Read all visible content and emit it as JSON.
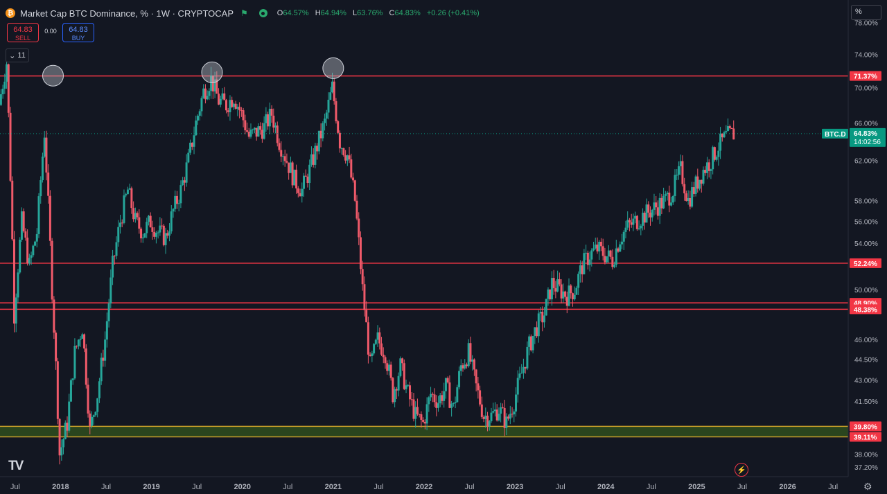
{
  "legend": {
    "coin_icon": "bitcoin-icon",
    "title": "Market Cap BTC Dominance, % · 1W · CRYPTOCAP",
    "ohlc_labels": {
      "o": "O",
      "h": "H",
      "l": "L",
      "c": "C"
    },
    "open": "64.57%",
    "high": "64.94%",
    "low": "63.76%",
    "close": "64.83%",
    "change": "+0.26 (+0.41%)"
  },
  "trade": {
    "sell_price": "64.83",
    "sell_label": "SELL",
    "spread": "0.00",
    "buy_price": "64.83",
    "buy_label": "BUY"
  },
  "collapse_count": "11",
  "scale_mode_label": "%",
  "colors": {
    "background": "#131722",
    "up": "#26a69a",
    "down": "#f05a6a",
    "level_line": "#f23645",
    "support_band": "#2e4a1e",
    "support_edge": "#c8a02a",
    "price_tag": "#089981"
  },
  "chart_data": {
    "type": "candlestick",
    "title": "Market Cap BTC Dominance, % · 1W · CRYPTOCAP",
    "yscale": "log",
    "ylim": [
      36.6,
      81.0
    ],
    "xlim": [
      "2017-05",
      "2026-09"
    ],
    "y_ticks": [
      "78.00%",
      "74.00%",
      "70.00%",
      "66.00%",
      "62.00%",
      "58.00%",
      "56.00%",
      "54.00%",
      "50.00%",
      "46.00%",
      "44.50%",
      "43.00%",
      "41.50%",
      "38.00%",
      "37.20%"
    ],
    "x_ticks": [
      {
        "label": "Jul",
        "t": "2017-07"
      },
      {
        "label": "2018",
        "t": "2018-01"
      },
      {
        "label": "Jul",
        "t": "2018-07"
      },
      {
        "label": "2019",
        "t": "2019-01"
      },
      {
        "label": "Jul",
        "t": "2019-07"
      },
      {
        "label": "2020",
        "t": "2020-01"
      },
      {
        "label": "Jul",
        "t": "2020-07"
      },
      {
        "label": "2021",
        "t": "2021-01"
      },
      {
        "label": "Jul",
        "t": "2021-07"
      },
      {
        "label": "2022",
        "t": "2022-01"
      },
      {
        "label": "Jul",
        "t": "2022-07"
      },
      {
        "label": "2023",
        "t": "2023-01"
      },
      {
        "label": "Jul",
        "t": "2023-07"
      },
      {
        "label": "2024",
        "t": "2024-01"
      },
      {
        "label": "Jul",
        "t": "2024-07"
      },
      {
        "label": "2025",
        "t": "2025-01"
      },
      {
        "label": "Jul",
        "t": "2025-07"
      },
      {
        "label": "2026",
        "t": "2026-01"
      },
      {
        "label": "Jul",
        "t": "2026-07"
      }
    ],
    "key_levels": [
      {
        "value": 71.37,
        "label": "71.37%"
      },
      {
        "value": 52.24,
        "label": "52.24%"
      },
      {
        "value": 48.9,
        "label": "48.90%"
      },
      {
        "value": 48.38,
        "label": "48.38%"
      }
    ],
    "support_zone": {
      "high": 39.8,
      "low": 39.11,
      "high_label": "39.80%",
      "low_label": "39.11%"
    },
    "current": {
      "symbol": "BTC.D",
      "value": 64.83,
      "value_label": "64.83%",
      "countdown": "14:02:56"
    },
    "highlight_circles": [
      {
        "t": "2017-12",
        "value": 71.4
      },
      {
        "t": "2019-09",
        "value": 71.8
      },
      {
        "t": "2021-01",
        "value": 72.3
      }
    ],
    "series": [
      {
        "t": "2017-05",
        "close": 68.0
      },
      {
        "t": "2017-06",
        "close": 73.0
      },
      {
        "t": "2017-07",
        "close": 48.0
      },
      {
        "t": "2017-08",
        "close": 56.0
      },
      {
        "t": "2017-09",
        "close": 52.0
      },
      {
        "t": "2017-10",
        "close": 55.0
      },
      {
        "t": "2017-11",
        "close": 65.0
      },
      {
        "t": "2017-12",
        "close": 50.0
      },
      {
        "t": "2018-01",
        "close": 38.0
      },
      {
        "t": "2018-02",
        "close": 40.0
      },
      {
        "t": "2018-03",
        "close": 45.0
      },
      {
        "t": "2018-04",
        "close": 47.0
      },
      {
        "t": "2018-05",
        "close": 39.5
      },
      {
        "t": "2018-06",
        "close": 42.0
      },
      {
        "t": "2018-07",
        "close": 46.0
      },
      {
        "t": "2018-08",
        "close": 52.0
      },
      {
        "t": "2018-09",
        "close": 56.0
      },
      {
        "t": "2018-10",
        "close": 59.0
      },
      {
        "t": "2018-11",
        "close": 56.0
      },
      {
        "t": "2018-12",
        "close": 55.0
      },
      {
        "t": "2019-01",
        "close": 56.0
      },
      {
        "t": "2019-02",
        "close": 55.0
      },
      {
        "t": "2019-03",
        "close": 54.5
      },
      {
        "t": "2019-04",
        "close": 57.0
      },
      {
        "t": "2019-05",
        "close": 59.0
      },
      {
        "t": "2019-06",
        "close": 62.0
      },
      {
        "t": "2019-07",
        "close": 66.0
      },
      {
        "t": "2019-08",
        "close": 69.5
      },
      {
        "t": "2019-09",
        "close": 71.0
      },
      {
        "t": "2019-10",
        "close": 68.5
      },
      {
        "t": "2019-11",
        "close": 68.0
      },
      {
        "t": "2019-12",
        "close": 69.0
      },
      {
        "t": "2020-01",
        "close": 67.0
      },
      {
        "t": "2020-02",
        "close": 64.5
      },
      {
        "t": "2020-03",
        "close": 65.0
      },
      {
        "t": "2020-04",
        "close": 65.5
      },
      {
        "t": "2020-05",
        "close": 67.0
      },
      {
        "t": "2020-06",
        "close": 64.0
      },
      {
        "t": "2020-07",
        "close": 62.0
      },
      {
        "t": "2020-08",
        "close": 60.0
      },
      {
        "t": "2020-09",
        "close": 59.0
      },
      {
        "t": "2020-10",
        "close": 61.0
      },
      {
        "t": "2020-11",
        "close": 63.5
      },
      {
        "t": "2020-12",
        "close": 66.0
      },
      {
        "t": "2021-01",
        "close": 70.0
      },
      {
        "t": "2021-02",
        "close": 64.0
      },
      {
        "t": "2021-03",
        "close": 62.5
      },
      {
        "t": "2021-04",
        "close": 58.0
      },
      {
        "t": "2021-05",
        "close": 50.0
      },
      {
        "t": "2021-06",
        "close": 44.0
      },
      {
        "t": "2021-07",
        "close": 46.0
      },
      {
        "t": "2021-08",
        "close": 45.0
      },
      {
        "t": "2021-09",
        "close": 42.0
      },
      {
        "t": "2021-10",
        "close": 44.0
      },
      {
        "t": "2021-11",
        "close": 42.0
      },
      {
        "t": "2021-12",
        "close": 40.5
      },
      {
        "t": "2022-01",
        "close": 40.0
      },
      {
        "t": "2022-02",
        "close": 42.0
      },
      {
        "t": "2022-03",
        "close": 41.5
      },
      {
        "t": "2022-04",
        "close": 42.5
      },
      {
        "t": "2022-05",
        "close": 41.0
      },
      {
        "t": "2022-06",
        "close": 44.0
      },
      {
        "t": "2022-07",
        "close": 45.0
      },
      {
        "t": "2022-08",
        "close": 42.5
      },
      {
        "t": "2022-09",
        "close": 40.5
      },
      {
        "t": "2022-10",
        "close": 40.5
      },
      {
        "t": "2022-11",
        "close": 41.0
      },
      {
        "t": "2022-12",
        "close": 40.0
      },
      {
        "t": "2023-01",
        "close": 41.5
      },
      {
        "t": "2023-02",
        "close": 43.5
      },
      {
        "t": "2023-03",
        "close": 45.5
      },
      {
        "t": "2023-04",
        "close": 47.0
      },
      {
        "t": "2023-05",
        "close": 48.0
      },
      {
        "t": "2023-06",
        "close": 50.5
      },
      {
        "t": "2023-07",
        "close": 50.0
      },
      {
        "t": "2023-08",
        "close": 49.5
      },
      {
        "t": "2023-09",
        "close": 50.0
      },
      {
        "t": "2023-10",
        "close": 52.0
      },
      {
        "t": "2023-11",
        "close": 53.0
      },
      {
        "t": "2023-12",
        "close": 53.5
      },
      {
        "t": "2024-01",
        "close": 53.0
      },
      {
        "t": "2024-02",
        "close": 52.5
      },
      {
        "t": "2024-03",
        "close": 54.5
      },
      {
        "t": "2024-04",
        "close": 55.5
      },
      {
        "t": "2024-05",
        "close": 56.0
      },
      {
        "t": "2024-06",
        "close": 56.5
      },
      {
        "t": "2024-07",
        "close": 57.0
      },
      {
        "t": "2024-08",
        "close": 57.5
      },
      {
        "t": "2024-09",
        "close": 58.0
      },
      {
        "t": "2024-10",
        "close": 59.0
      },
      {
        "t": "2024-11",
        "close": 61.0
      },
      {
        "t": "2024-12",
        "close": 58.0
      },
      {
        "t": "2025-01",
        "close": 59.5
      },
      {
        "t": "2025-02",
        "close": 61.0
      },
      {
        "t": "2025-03",
        "close": 62.0
      },
      {
        "t": "2025-04",
        "close": 63.5
      },
      {
        "t": "2025-05",
        "close": 64.5
      },
      {
        "t": "2025-06",
        "close": 64.83
      }
    ]
  }
}
